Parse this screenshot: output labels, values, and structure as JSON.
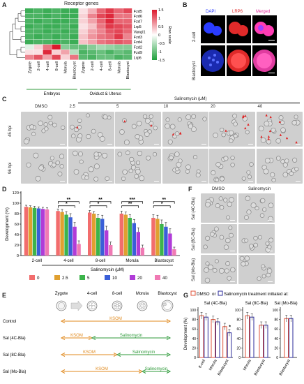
{
  "panels": {
    "A": "A",
    "B": "B",
    "C": "C",
    "D": "D",
    "E": "E",
    "F": "F",
    "G": "G"
  },
  "heatmap": {
    "title": "Receptor genes",
    "genes": [
      "Fzd5",
      "Fzd6",
      "Fzd7",
      "Lrp5",
      "Vangl1",
      "Fzd3",
      "Fzd4",
      "Fzd2",
      "Fzd9",
      "Lrp6"
    ],
    "samples": [
      "Zygote",
      "2-cell",
      "4-cell",
      "8-cell",
      "Morula",
      "Blastocyst",
      "Zygote",
      "2-cell",
      "4-cell",
      "8-cell",
      "Morula",
      "Blastocyst"
    ],
    "group_labels": [
      "Embryos",
      "Oviduct & Uterus"
    ],
    "legend_title": "Row scale",
    "legend_ticks": [
      "1.5",
      "1",
      "0.5",
      "0",
      "-0.5",
      "-1",
      "-1.5"
    ],
    "values": [
      [
        -1.3,
        -1.2,
        -1.3,
        -1.2,
        -1.3,
        -1.3,
        0.2,
        0.5,
        1.0,
        1.3,
        1.0,
        1.2
      ],
      [
        -1.2,
        -1.2,
        -1.3,
        -1.2,
        -1.3,
        -1.3,
        0.3,
        0.8,
        1.2,
        1.4,
        0.9,
        0.9
      ],
      [
        -1.2,
        -1.3,
        -1.2,
        -1.3,
        -1.3,
        -1.2,
        0.3,
        0.6,
        1.0,
        1.4,
        1.0,
        1.0
      ],
      [
        -1.3,
        -1.2,
        -1.3,
        -1.3,
        -1.2,
        -1.3,
        0.2,
        0.4,
        0.9,
        1.3,
        1.2,
        1.1
      ],
      [
        -1.2,
        -1.2,
        -1.3,
        -1.2,
        -1.3,
        -1.2,
        0.3,
        0.6,
        0.8,
        1.1,
        1.2,
        1.0
      ],
      [
        -1.2,
        -1.3,
        -1.2,
        -1.3,
        -1.2,
        -1.3,
        0.4,
        0.7,
        0.9,
        1.0,
        1.3,
        0.8
      ],
      [
        -1.3,
        -1.2,
        -1.2,
        -1.3,
        -1.2,
        -1.3,
        0.4,
        0.6,
        0.9,
        1.0,
        1.1,
        1.0
      ],
      [
        -0.2,
        0.3,
        0.9,
        1.5,
        -0.8,
        -1.0,
        -1.0,
        -0.8,
        -0.6,
        -0.7,
        -0.8,
        -0.8
      ],
      [
        0.2,
        0.2,
        1.4,
        0.3,
        0.6,
        -0.5,
        -1.2,
        -1.1,
        -1.0,
        -1.2,
        -1.0,
        -1.1
      ],
      [
        0.8,
        1.1,
        0.6,
        1.2,
        0.3,
        0.9,
        -1.1,
        -1.2,
        -1.0,
        -1.0,
        -1.2,
        -1.1
      ]
    ]
  },
  "fluo": {
    "cols": [
      "DAPI",
      "LRP6",
      "Merged"
    ],
    "rows": [
      "2-cell",
      "Blastocyst"
    ],
    "colors": {
      "dapi": "#2a3cff",
      "lrp6": "#ff2a2a",
      "merged": "#ff3cb4"
    }
  },
  "panelC": {
    "title": "Salinomycin (μM)",
    "cols": [
      "DMSO",
      "2.5",
      "5",
      "10",
      "20",
      "40"
    ],
    "rows": [
      "45 hpi",
      "96 hpi"
    ]
  },
  "chart_data": {
    "type": "bar",
    "ylabel": "Development (%)",
    "ylim": [
      0,
      120
    ],
    "yticks": [
      "0",
      "20",
      "40",
      "60",
      "80",
      "100",
      "120"
    ],
    "categories": [
      "2-cell",
      "4-cell",
      "8-cell",
      "Morula",
      "Blastocyst"
    ],
    "legend_title": "Salinomycin (μM)",
    "series": [
      {
        "name": "0",
        "color": "#f26d6d",
        "values": [
          93,
          85,
          82,
          80,
          72
        ],
        "err": [
          3,
          4,
          4,
          5,
          6
        ]
      },
      {
        "name": "2.5",
        "color": "#e0a030",
        "values": [
          92,
          83,
          80,
          78,
          70
        ],
        "err": [
          3,
          5,
          4,
          5,
          7
        ]
      },
      {
        "name": "5",
        "color": "#3cb44b",
        "values": [
          91,
          78,
          72,
          72,
          60
        ],
        "err": [
          3,
          6,
          6,
          6,
          8
        ]
      },
      {
        "name": "10",
        "color": "#3a5fd8",
        "values": [
          90,
          73,
          70,
          62,
          55
        ],
        "err": [
          3,
          7,
          7,
          7,
          8
        ]
      },
      {
        "name": "20",
        "color": "#b03cd8",
        "values": [
          89,
          55,
          48,
          45,
          42
        ],
        "err": [
          3,
          8,
          8,
          8,
          9
        ]
      },
      {
        "name": "40",
        "color": "#f07ab4",
        "values": [
          88,
          22,
          20,
          15,
          12
        ],
        "err": [
          3,
          6,
          6,
          5,
          4
        ]
      }
    ],
    "sig": [
      "**",
      "*",
      "**",
      "*",
      "***",
      "**",
      "**",
      "*"
    ]
  },
  "panelF": {
    "cols": [
      "DMSO",
      "Salinomycin"
    ],
    "rows": [
      "Sal (4C-Bla)",
      "Sal (8C-Bla)",
      "Sal (Mo-Bla)"
    ]
  },
  "panelE": {
    "stages": [
      "Zygote",
      "4-cell",
      "8-cell",
      "Morula",
      "Blastocyst"
    ],
    "rows": [
      {
        "label": "Control",
        "segments": [
          {
            "text": "KSOM",
            "color": "#e08a1e"
          }
        ]
      },
      {
        "label": "Sal (4C-Bla)",
        "segments": [
          {
            "text": "KSOM",
            "color": "#e08a1e"
          },
          {
            "text": "Salinomycin",
            "color": "#2e9a3a"
          }
        ]
      },
      {
        "label": "Sal (8C-Bla)",
        "segments": [
          {
            "text": "KSOM",
            "color": "#e08a1e"
          },
          {
            "text": "Salinomycin",
            "color": "#2e9a3a"
          }
        ]
      },
      {
        "label": "Sal (Mo-Bla)",
        "segments": [
          {
            "text": "KSOM",
            "color": "#e08a1e"
          },
          {
            "text": "Salinomycin",
            "color": "#2e9a3a"
          }
        ]
      }
    ]
  },
  "panelG": {
    "legend_dmso": "DMSO",
    "legend_or": "or",
    "legend_sal": "Salinomycin",
    "legend_tail": "treatment initiated at:",
    "ylabel": "Development (%)",
    "yticks": [
      "0",
      "20",
      "40",
      "60",
      "80",
      "100"
    ],
    "groups": [
      {
        "title": "Sal (4C-Bla)",
        "categories": [
          "8-cell",
          "Morula",
          "Blastocyst"
        ],
        "dmso": [
          88,
          80,
          65
        ],
        "sal": [
          85,
          75,
          52
        ],
        "star": "*"
      },
      {
        "title": "Sal (8C-Bla)",
        "categories": [
          "Morula",
          "Blastocyst"
        ],
        "dmso": [
          88,
          68
        ],
        "sal": [
          85,
          68
        ],
        "star": ""
      },
      {
        "title": "Sal (Mo-Bla)",
        "categories": [
          "Blastocyst"
        ],
        "dmso": [
          82
        ],
        "sal": [
          82
        ],
        "star": ""
      }
    ],
    "colors": {
      "dmso": "#e0533a",
      "sal": "#2a2a9a"
    }
  }
}
